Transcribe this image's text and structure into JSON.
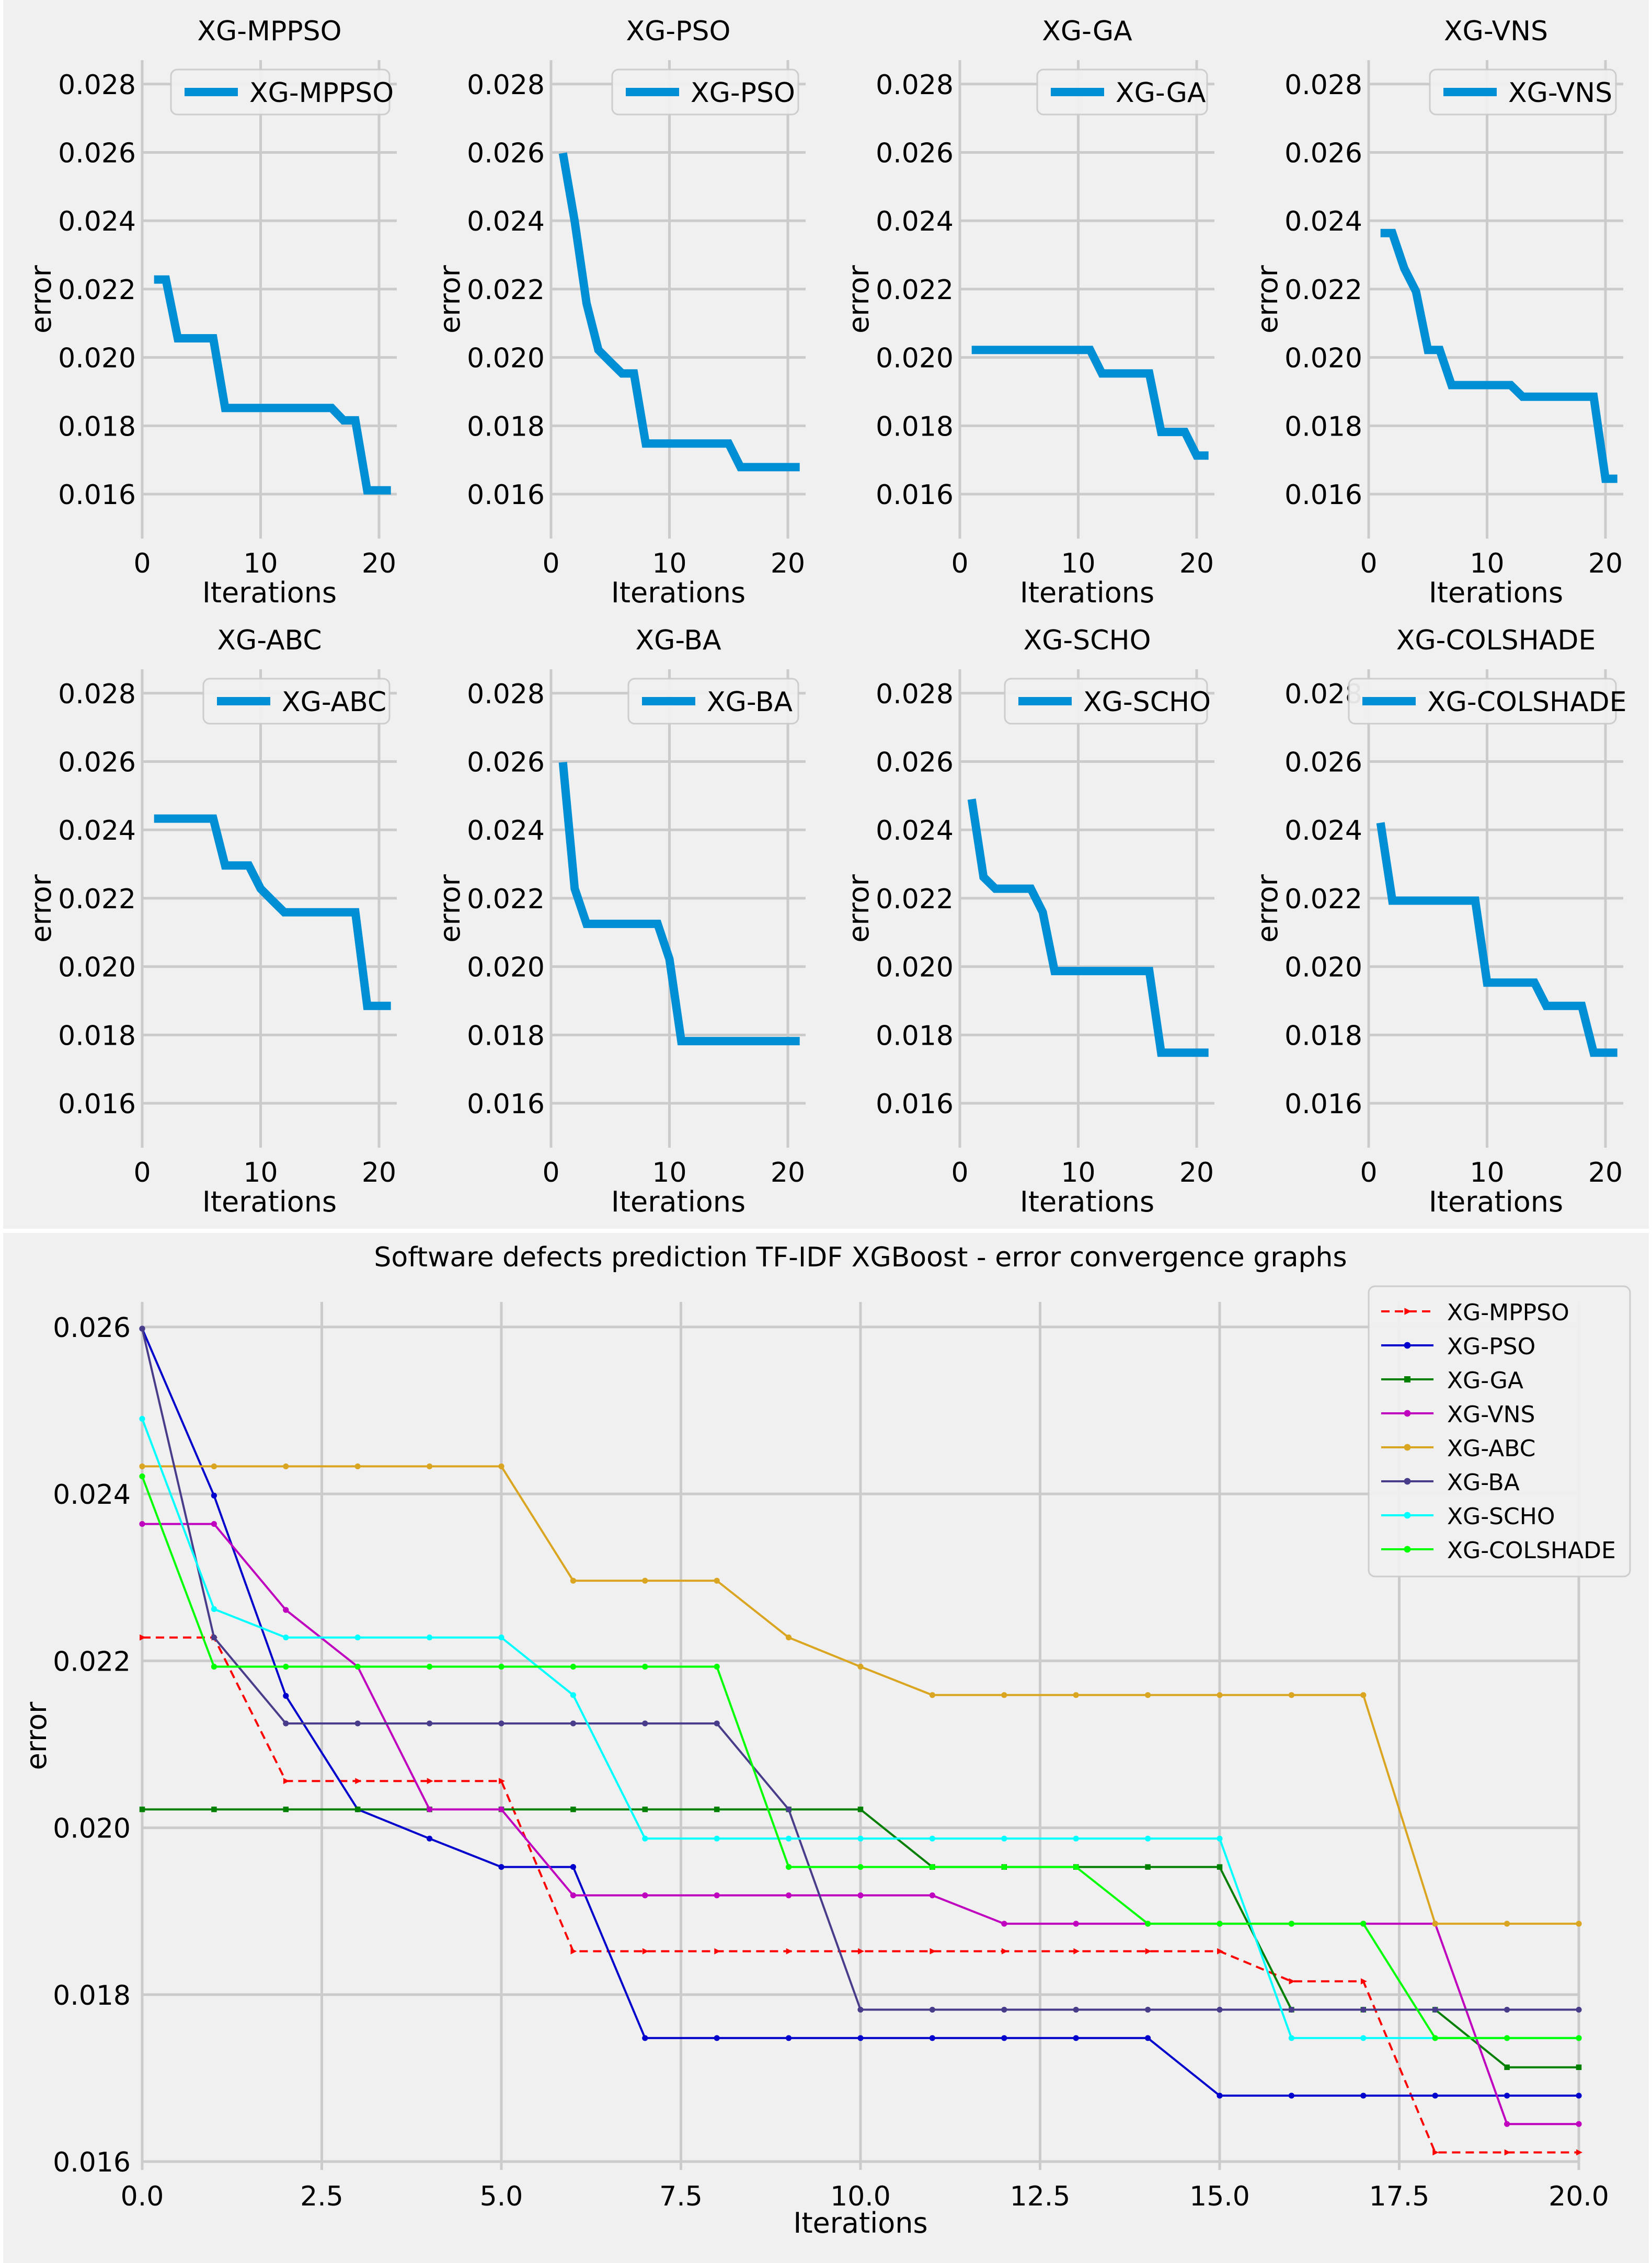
{
  "colors": {
    "background": "#f0f0f0",
    "grid": "#cbcbcb",
    "small_line": "#008fd5",
    "separator": "#ffffff"
  },
  "chart_data": [
    {
      "type": "line",
      "title": "XG-MPPSO",
      "legend": "XG-MPPSO",
      "legend_position": "top-right",
      "xlabel": "Iterations",
      "ylabel": "error",
      "xlim": [
        0,
        21.5
      ],
      "ylim": [
        0.0147,
        0.0287
      ],
      "xticks": [
        "0",
        "10",
        "20"
      ],
      "yticks": [
        "0.016",
        "0.018",
        "0.020",
        "0.022",
        "0.024",
        "0.026",
        "0.028"
      ],
      "x": [
        1,
        2,
        3,
        4,
        5,
        6,
        7,
        8,
        9,
        10,
        11,
        12,
        13,
        14,
        15,
        16,
        17,
        18,
        19,
        20,
        21
      ],
      "values": [
        0.02228,
        0.02228,
        0.02056,
        0.02056,
        0.02056,
        0.02056,
        0.01852,
        0.01852,
        0.01852,
        0.01852,
        0.01852,
        0.01852,
        0.01852,
        0.01852,
        0.01852,
        0.01852,
        0.01816,
        0.01816,
        0.01611,
        0.01611,
        0.01611
      ]
    },
    {
      "type": "line",
      "title": "XG-PSO",
      "legend": "XG-PSO",
      "legend_position": "top-right",
      "xlabel": "Iterations",
      "ylabel": "error",
      "xlim": [
        0,
        21.5
      ],
      "ylim": [
        0.0147,
        0.0287
      ],
      "xticks": [
        "0",
        "10",
        "20"
      ],
      "yticks": [
        "0.016",
        "0.018",
        "0.020",
        "0.022",
        "0.024",
        "0.026",
        "0.028"
      ],
      "x": [
        1,
        2,
        3,
        4,
        5,
        6,
        7,
        8,
        9,
        10,
        11,
        12,
        13,
        14,
        15,
        16,
        17,
        18,
        19,
        20,
        21
      ],
      "values": [
        0.02598,
        0.02398,
        0.02158,
        0.02022,
        0.01987,
        0.01953,
        0.01953,
        0.01748,
        0.01748,
        0.01748,
        0.01748,
        0.01748,
        0.01748,
        0.01748,
        0.01748,
        0.01679,
        0.01679,
        0.01679,
        0.01679,
        0.01679,
        0.01679
      ]
    },
    {
      "type": "line",
      "title": "XG-GA",
      "legend": "XG-GA",
      "legend_position": "top-right",
      "xlabel": "Iterations",
      "ylabel": "error",
      "xlim": [
        0,
        21.5
      ],
      "ylim": [
        0.0147,
        0.0287
      ],
      "xticks": [
        "0",
        "10",
        "20"
      ],
      "yticks": [
        "0.016",
        "0.018",
        "0.020",
        "0.022",
        "0.024",
        "0.026",
        "0.028"
      ],
      "x": [
        1,
        2,
        3,
        4,
        5,
        6,
        7,
        8,
        9,
        10,
        11,
        12,
        13,
        14,
        15,
        16,
        17,
        18,
        19,
        20,
        21
      ],
      "values": [
        0.02022,
        0.02022,
        0.02022,
        0.02022,
        0.02022,
        0.02022,
        0.02022,
        0.02022,
        0.02022,
        0.02022,
        0.02022,
        0.01953,
        0.01953,
        0.01953,
        0.01953,
        0.01953,
        0.01782,
        0.01782,
        0.01782,
        0.01713,
        0.01713
      ]
    },
    {
      "type": "line",
      "title": "XG-VNS",
      "legend": "XG-VNS",
      "legend_position": "top-right",
      "xlabel": "Iterations",
      "ylabel": "error",
      "xlim": [
        0,
        21.5
      ],
      "ylim": [
        0.0147,
        0.0287
      ],
      "xticks": [
        "0",
        "10",
        "20"
      ],
      "yticks": [
        "0.016",
        "0.018",
        "0.020",
        "0.022",
        "0.024",
        "0.026",
        "0.028"
      ],
      "x": [
        1,
        2,
        3,
        4,
        5,
        6,
        7,
        8,
        9,
        10,
        11,
        12,
        13,
        14,
        15,
        16,
        17,
        18,
        19,
        20,
        21
      ],
      "values": [
        0.02364,
        0.02364,
        0.02261,
        0.02193,
        0.02022,
        0.02022,
        0.01919,
        0.01919,
        0.01919,
        0.01919,
        0.01919,
        0.01919,
        0.01885,
        0.01885,
        0.01885,
        0.01885,
        0.01885,
        0.01885,
        0.01885,
        0.01645,
        0.01645
      ]
    },
    {
      "type": "line",
      "title": "XG-ABC",
      "legend": "XG-ABC",
      "legend_position": "top-right",
      "xlabel": "Iterations",
      "ylabel": "error",
      "xlim": [
        0,
        21.5
      ],
      "ylim": [
        0.0147,
        0.0287
      ],
      "xticks": [
        "0",
        "10",
        "20"
      ],
      "yticks": [
        "0.016",
        "0.018",
        "0.020",
        "0.022",
        "0.024",
        "0.026",
        "0.028"
      ],
      "x": [
        1,
        2,
        3,
        4,
        5,
        6,
        7,
        8,
        9,
        10,
        11,
        12,
        13,
        14,
        15,
        16,
        17,
        18,
        19,
        20,
        21
      ],
      "values": [
        0.02433,
        0.02433,
        0.02433,
        0.02433,
        0.02433,
        0.02433,
        0.02296,
        0.02296,
        0.02296,
        0.02228,
        0.02193,
        0.02159,
        0.02159,
        0.02159,
        0.02159,
        0.02159,
        0.02159,
        0.02159,
        0.01885,
        0.01885,
        0.01885
      ]
    },
    {
      "type": "line",
      "title": "XG-BA",
      "legend": "XG-BA",
      "legend_position": "top-right",
      "xlabel": "Iterations",
      "ylabel": "error",
      "xlim": [
        0,
        21.5
      ],
      "ylim": [
        0.0147,
        0.0287
      ],
      "xticks": [
        "0",
        "10",
        "20"
      ],
      "yticks": [
        "0.016",
        "0.018",
        "0.020",
        "0.022",
        "0.024",
        "0.026",
        "0.028"
      ],
      "x": [
        1,
        2,
        3,
        4,
        5,
        6,
        7,
        8,
        9,
        10,
        11,
        12,
        13,
        14,
        15,
        16,
        17,
        18,
        19,
        20,
        21
      ],
      "values": [
        0.02598,
        0.02228,
        0.02125,
        0.02125,
        0.02125,
        0.02125,
        0.02125,
        0.02125,
        0.02125,
        0.02022,
        0.01782,
        0.01782,
        0.01782,
        0.01782,
        0.01782,
        0.01782,
        0.01782,
        0.01782,
        0.01782,
        0.01782,
        0.01782
      ]
    },
    {
      "type": "line",
      "title": "XG-SCHO",
      "legend": "XG-SCHO",
      "legend_position": "top-right",
      "xlabel": "Iterations",
      "ylabel": "error",
      "xlim": [
        0,
        21.5
      ],
      "ylim": [
        0.0147,
        0.0287
      ],
      "xticks": [
        "0",
        "10",
        "20"
      ],
      "yticks": [
        "0.016",
        "0.018",
        "0.020",
        "0.022",
        "0.024",
        "0.026",
        "0.028"
      ],
      "x": [
        1,
        2,
        3,
        4,
        5,
        6,
        7,
        8,
        9,
        10,
        11,
        12,
        13,
        14,
        15,
        16,
        17,
        18,
        19,
        20,
        21
      ],
      "values": [
        0.0249,
        0.02262,
        0.02228,
        0.02228,
        0.02228,
        0.02228,
        0.02159,
        0.01987,
        0.01987,
        0.01987,
        0.01987,
        0.01987,
        0.01987,
        0.01987,
        0.01987,
        0.01987,
        0.01748,
        0.01748,
        0.01748,
        0.01748,
        0.01748
      ]
    },
    {
      "type": "line",
      "title": "XG-COLSHADE",
      "legend": "XG-COLSHADE",
      "legend_position": "top-right",
      "xlabel": "Iterations",
      "ylabel": "error",
      "xlim": [
        0,
        21.5
      ],
      "ylim": [
        0.0147,
        0.0287
      ],
      "xticks": [
        "0",
        "10",
        "20"
      ],
      "yticks": [
        "0.016",
        "0.018",
        "0.020",
        "0.022",
        "0.024",
        "0.026",
        "0.028"
      ],
      "x": [
        1,
        2,
        3,
        4,
        5,
        6,
        7,
        8,
        9,
        10,
        11,
        12,
        13,
        14,
        15,
        16,
        17,
        18,
        19,
        20,
        21
      ],
      "values": [
        0.02421,
        0.02193,
        0.02193,
        0.02193,
        0.02193,
        0.02193,
        0.02193,
        0.02193,
        0.02193,
        0.01953,
        0.01953,
        0.01953,
        0.01953,
        0.01953,
        0.01885,
        0.01885,
        0.01885,
        0.01885,
        0.01748,
        0.01748,
        0.01748
      ]
    },
    {
      "type": "line",
      "title": "Software defects prediction TF-IDF XGBoost -  error convergence graphs",
      "xlabel": "Iterations",
      "ylabel": "error",
      "xlim": [
        0,
        20
      ],
      "ylim": [
        0.0159,
        0.0263
      ],
      "xticks": [
        "0.0",
        "2.5",
        "5.0",
        "7.5",
        "10.0",
        "12.5",
        "15.0",
        "17.5",
        "20.0"
      ],
      "yticks": [
        "0.016",
        "0.018",
        "0.020",
        "0.022",
        "0.024",
        "0.026"
      ],
      "legend_position": "top-right",
      "grid": true,
      "x": [
        0,
        1,
        2,
        3,
        4,
        5,
        6,
        7,
        8,
        9,
        10,
        11,
        12,
        13,
        14,
        15,
        16,
        17,
        18,
        19,
        20
      ],
      "series": [
        {
          "name": "XG-MPPSO",
          "color": "#ff0000",
          "dashed": true,
          "marker": "triangle",
          "values": [
            0.02228,
            0.02228,
            0.02056,
            0.02056,
            0.02056,
            0.02056,
            0.01852,
            0.01852,
            0.01852,
            0.01852,
            0.01852,
            0.01852,
            0.01852,
            0.01852,
            0.01852,
            0.01852,
            0.01816,
            0.01816,
            0.01611,
            0.01611,
            0.01611
          ]
        },
        {
          "name": "XG-PSO",
          "color": "#0000cc",
          "dashed": false,
          "marker": "circle",
          "values": [
            0.02598,
            0.02398,
            0.02158,
            0.02022,
            0.01987,
            0.01953,
            0.01953,
            0.01748,
            0.01748,
            0.01748,
            0.01748,
            0.01748,
            0.01748,
            0.01748,
            0.01748,
            0.01679,
            0.01679,
            0.01679,
            0.01679,
            0.01679,
            0.01679
          ]
        },
        {
          "name": "XG-GA",
          "color": "#007f00",
          "dashed": false,
          "marker": "square",
          "values": [
            0.02022,
            0.02022,
            0.02022,
            0.02022,
            0.02022,
            0.02022,
            0.02022,
            0.02022,
            0.02022,
            0.02022,
            0.02022,
            0.01953,
            0.01953,
            0.01953,
            0.01953,
            0.01953,
            0.01782,
            0.01782,
            0.01782,
            0.01713,
            0.01713
          ]
        },
        {
          "name": "XG-VNS",
          "color": "#bf00bf",
          "dashed": false,
          "marker": "circle",
          "values": [
            0.02364,
            0.02364,
            0.02261,
            0.02193,
            0.02022,
            0.02022,
            0.01919,
            0.01919,
            0.01919,
            0.01919,
            0.01919,
            0.01919,
            0.01885,
            0.01885,
            0.01885,
            0.01885,
            0.01885,
            0.01885,
            0.01885,
            0.01645,
            0.01645
          ]
        },
        {
          "name": "XG-ABC",
          "color": "#daa520",
          "dashed": false,
          "marker": "circle",
          "values": [
            0.02433,
            0.02433,
            0.02433,
            0.02433,
            0.02433,
            0.02433,
            0.02296,
            0.02296,
            0.02296,
            0.02228,
            0.02193,
            0.02159,
            0.02159,
            0.02159,
            0.02159,
            0.02159,
            0.02159,
            0.02159,
            0.01885,
            0.01885,
            0.01885
          ]
        },
        {
          "name": "XG-BA",
          "color": "#483d8b",
          "dashed": false,
          "marker": "circle",
          "values": [
            0.02598,
            0.02228,
            0.02125,
            0.02125,
            0.02125,
            0.02125,
            0.02125,
            0.02125,
            0.02125,
            0.02022,
            0.01782,
            0.01782,
            0.01782,
            0.01782,
            0.01782,
            0.01782,
            0.01782,
            0.01782,
            0.01782,
            0.01782,
            0.01782
          ]
        },
        {
          "name": "XG-SCHO",
          "color": "#00ffff",
          "dashed": false,
          "marker": "circle",
          "values": [
            0.0249,
            0.02262,
            0.02228,
            0.02228,
            0.02228,
            0.02228,
            0.02159,
            0.01987,
            0.01987,
            0.01987,
            0.01987,
            0.01987,
            0.01987,
            0.01987,
            0.01987,
            0.01987,
            0.01748,
            0.01748,
            0.01748,
            0.01748,
            0.01748
          ]
        },
        {
          "name": "XG-COLSHADE",
          "color": "#00ff00",
          "dashed": false,
          "marker": "circle",
          "values": [
            0.02421,
            0.02193,
            0.02193,
            0.02193,
            0.02193,
            0.02193,
            0.02193,
            0.02193,
            0.02193,
            0.01953,
            0.01953,
            0.01953,
            0.01953,
            0.01953,
            0.01885,
            0.01885,
            0.01885,
            0.01885,
            0.01748,
            0.01748,
            0.01748
          ]
        }
      ]
    }
  ]
}
